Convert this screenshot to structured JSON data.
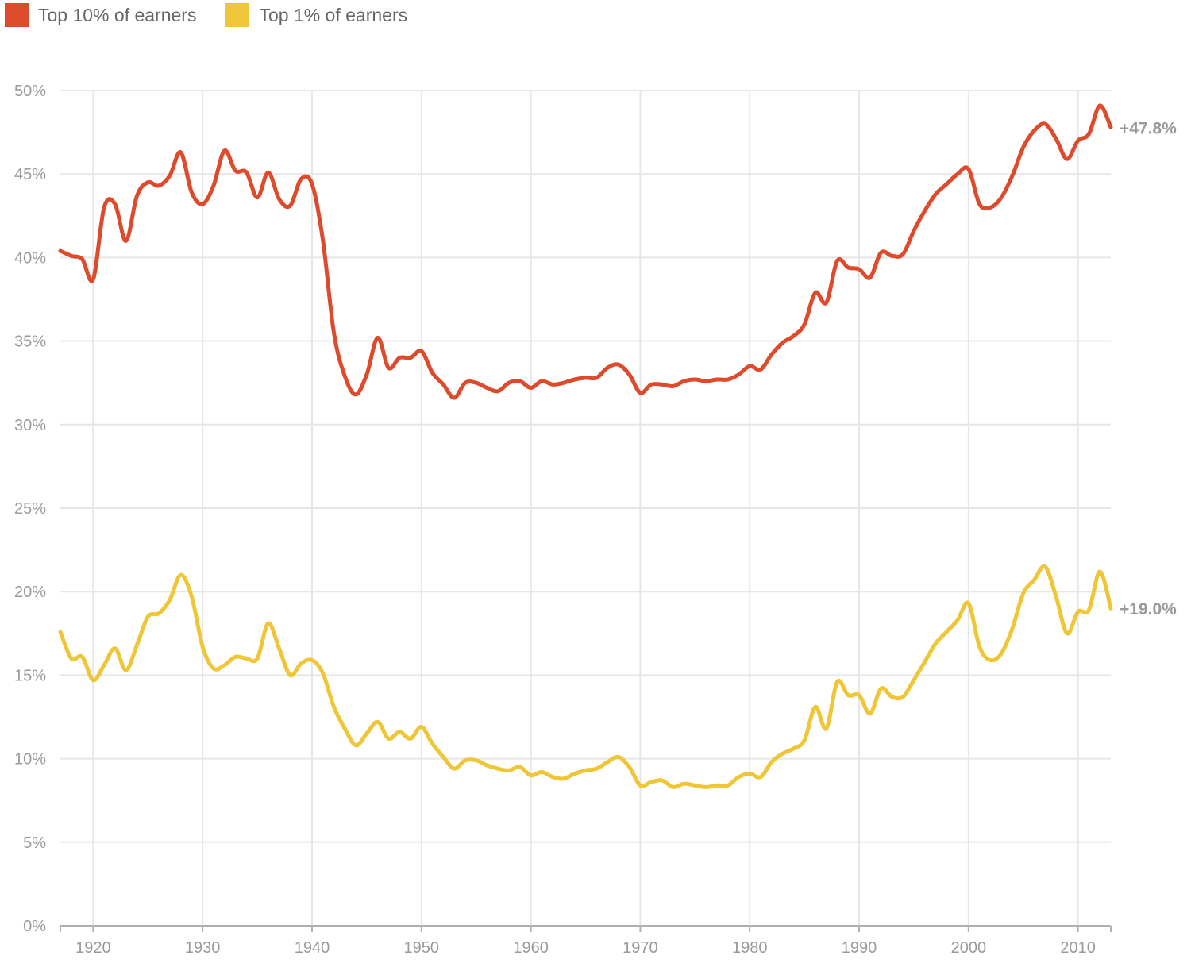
{
  "chart_data": {
    "type": "line",
    "title": "",
    "xlabel": "",
    "ylabel": "",
    "xlim": [
      1917,
      2013
    ],
    "ylim": [
      0,
      50
    ],
    "x_ticks": [
      1920,
      1930,
      1940,
      1950,
      1960,
      1970,
      1980,
      1990,
      2000,
      2010
    ],
    "x_tick_labels": [
      "1920",
      "1930",
      "1940",
      "1950",
      "1960",
      "1970",
      "1980",
      "1990",
      "2000",
      "2010"
    ],
    "y_ticks": [
      0,
      5,
      10,
      15,
      20,
      25,
      30,
      35,
      40,
      45,
      50
    ],
    "y_tick_labels": [
      "0%",
      "5%",
      "10%",
      "15%",
      "20%",
      "25%",
      "30%",
      "35%",
      "40%",
      "45%",
      "50%"
    ],
    "grid": true,
    "legend_position": "top-left",
    "series": [
      {
        "name": "Top 10% of earners",
        "color": "#de4a2c",
        "end_label": "+47.8%",
        "points": [
          [
            1917,
            40.4
          ],
          [
            1918,
            40.1
          ],
          [
            1919,
            39.9
          ],
          [
            1920,
            38.7
          ],
          [
            1921,
            43.0
          ],
          [
            1922,
            43.2
          ],
          [
            1923,
            41.0
          ],
          [
            1924,
            43.7
          ],
          [
            1925,
            44.5
          ],
          [
            1926,
            44.3
          ],
          [
            1927,
            44.9
          ],
          [
            1928,
            46.3
          ],
          [
            1929,
            43.9
          ],
          [
            1930,
            43.2
          ],
          [
            1931,
            44.3
          ],
          [
            1932,
            46.4
          ],
          [
            1933,
            45.2
          ],
          [
            1934,
            45.1
          ],
          [
            1935,
            43.6
          ],
          [
            1936,
            45.1
          ],
          [
            1937,
            43.5
          ],
          [
            1938,
            43.1
          ],
          [
            1939,
            44.7
          ],
          [
            1940,
            44.4
          ],
          [
            1941,
            41.0
          ],
          [
            1942,
            35.5
          ],
          [
            1943,
            32.9
          ],
          [
            1944,
            31.8
          ],
          [
            1945,
            33.0
          ],
          [
            1946,
            35.2
          ],
          [
            1947,
            33.4
          ],
          [
            1948,
            34.0
          ],
          [
            1949,
            34.0
          ],
          [
            1950,
            34.4
          ],
          [
            1951,
            33.1
          ],
          [
            1952,
            32.4
          ],
          [
            1953,
            31.6
          ],
          [
            1954,
            32.5
          ],
          [
            1955,
            32.5
          ],
          [
            1956,
            32.2
          ],
          [
            1957,
            32.0
          ],
          [
            1958,
            32.5
          ],
          [
            1959,
            32.6
          ],
          [
            1960,
            32.2
          ],
          [
            1961,
            32.6
          ],
          [
            1962,
            32.4
          ],
          [
            1963,
            32.5
          ],
          [
            1964,
            32.7
          ],
          [
            1965,
            32.8
          ],
          [
            1966,
            32.8
          ],
          [
            1967,
            33.4
          ],
          [
            1968,
            33.6
          ],
          [
            1969,
            33.0
          ],
          [
            1970,
            31.9
          ],
          [
            1971,
            32.4
          ],
          [
            1972,
            32.4
          ],
          [
            1973,
            32.3
          ],
          [
            1974,
            32.6
          ],
          [
            1975,
            32.7
          ],
          [
            1976,
            32.6
          ],
          [
            1977,
            32.7
          ],
          [
            1978,
            32.7
          ],
          [
            1979,
            33.0
          ],
          [
            1980,
            33.5
          ],
          [
            1981,
            33.3
          ],
          [
            1982,
            34.2
          ],
          [
            1983,
            34.9
          ],
          [
            1984,
            35.3
          ],
          [
            1985,
            36.0
          ],
          [
            1986,
            37.9
          ],
          [
            1987,
            37.3
          ],
          [
            1988,
            39.8
          ],
          [
            1989,
            39.4
          ],
          [
            1990,
            39.3
          ],
          [
            1991,
            38.8
          ],
          [
            1992,
            40.3
          ],
          [
            1993,
            40.1
          ],
          [
            1994,
            40.2
          ],
          [
            1995,
            41.6
          ],
          [
            1996,
            42.8
          ],
          [
            1997,
            43.8
          ],
          [
            1998,
            44.4
          ],
          [
            1999,
            45.0
          ],
          [
            2000,
            45.3
          ],
          [
            2001,
            43.2
          ],
          [
            2002,
            43.0
          ],
          [
            2003,
            43.6
          ],
          [
            2004,
            44.9
          ],
          [
            2005,
            46.6
          ],
          [
            2006,
            47.6
          ],
          [
            2007,
            48.0
          ],
          [
            2008,
            47.1
          ],
          [
            2009,
            45.9
          ],
          [
            2010,
            47.0
          ],
          [
            2011,
            47.4
          ],
          [
            2012,
            49.1
          ],
          [
            2013,
            47.8
          ]
        ]
      },
      {
        "name": "Top 1% of earners",
        "color": "#efc637",
        "end_label": "+19.0%",
        "points": [
          [
            1917,
            17.6
          ],
          [
            1918,
            16.0
          ],
          [
            1919,
            16.1
          ],
          [
            1920,
            14.7
          ],
          [
            1921,
            15.6
          ],
          [
            1922,
            16.6
          ],
          [
            1923,
            15.3
          ],
          [
            1924,
            16.8
          ],
          [
            1925,
            18.5
          ],
          [
            1926,
            18.7
          ],
          [
            1927,
            19.5
          ],
          [
            1928,
            21.0
          ],
          [
            1929,
            19.7
          ],
          [
            1930,
            16.7
          ],
          [
            1931,
            15.4
          ],
          [
            1932,
            15.6
          ],
          [
            1933,
            16.1
          ],
          [
            1934,
            16.0
          ],
          [
            1935,
            16.0
          ],
          [
            1936,
            18.1
          ],
          [
            1937,
            16.6
          ],
          [
            1938,
            15.0
          ],
          [
            1939,
            15.7
          ],
          [
            1940,
            15.9
          ],
          [
            1941,
            15.1
          ],
          [
            1942,
            13.1
          ],
          [
            1943,
            11.8
          ],
          [
            1944,
            10.8
          ],
          [
            1945,
            11.5
          ],
          [
            1946,
            12.2
          ],
          [
            1947,
            11.2
          ],
          [
            1948,
            11.6
          ],
          [
            1949,
            11.2
          ],
          [
            1950,
            11.9
          ],
          [
            1951,
            10.9
          ],
          [
            1952,
            10.1
          ],
          [
            1953,
            9.4
          ],
          [
            1954,
            9.9
          ],
          [
            1955,
            9.9
          ],
          [
            1956,
            9.6
          ],
          [
            1957,
            9.4
          ],
          [
            1958,
            9.3
          ],
          [
            1959,
            9.5
          ],
          [
            1960,
            9.0
          ],
          [
            1961,
            9.2
          ],
          [
            1962,
            8.9
          ],
          [
            1963,
            8.8
          ],
          [
            1964,
            9.1
          ],
          [
            1965,
            9.3
          ],
          [
            1966,
            9.4
          ],
          [
            1967,
            9.8
          ],
          [
            1968,
            10.1
          ],
          [
            1969,
            9.5
          ],
          [
            1970,
            8.4
          ],
          [
            1971,
            8.6
          ],
          [
            1972,
            8.7
          ],
          [
            1973,
            8.3
          ],
          [
            1974,
            8.5
          ],
          [
            1975,
            8.4
          ],
          [
            1976,
            8.3
          ],
          [
            1977,
            8.4
          ],
          [
            1978,
            8.4
          ],
          [
            1979,
            8.9
          ],
          [
            1980,
            9.1
          ],
          [
            1981,
            8.9
          ],
          [
            1982,
            9.8
          ],
          [
            1983,
            10.3
          ],
          [
            1984,
            10.6
          ],
          [
            1985,
            11.1
          ],
          [
            1986,
            13.1
          ],
          [
            1987,
            11.8
          ],
          [
            1988,
            14.6
          ],
          [
            1989,
            13.8
          ],
          [
            1990,
            13.8
          ],
          [
            1991,
            12.7
          ],
          [
            1992,
            14.2
          ],
          [
            1993,
            13.7
          ],
          [
            1994,
            13.7
          ],
          [
            1995,
            14.7
          ],
          [
            1996,
            15.8
          ],
          [
            1997,
            16.9
          ],
          [
            1998,
            17.6
          ],
          [
            1999,
            18.3
          ],
          [
            2000,
            19.3
          ],
          [
            2001,
            16.7
          ],
          [
            2002,
            15.9
          ],
          [
            2003,
            16.3
          ],
          [
            2004,
            17.8
          ],
          [
            2005,
            19.9
          ],
          [
            2006,
            20.7
          ],
          [
            2007,
            21.5
          ],
          [
            2008,
            19.7
          ],
          [
            2009,
            17.5
          ],
          [
            2010,
            18.8
          ],
          [
            2011,
            18.9
          ],
          [
            2012,
            21.2
          ],
          [
            2013,
            19.0
          ]
        ]
      }
    ]
  }
}
